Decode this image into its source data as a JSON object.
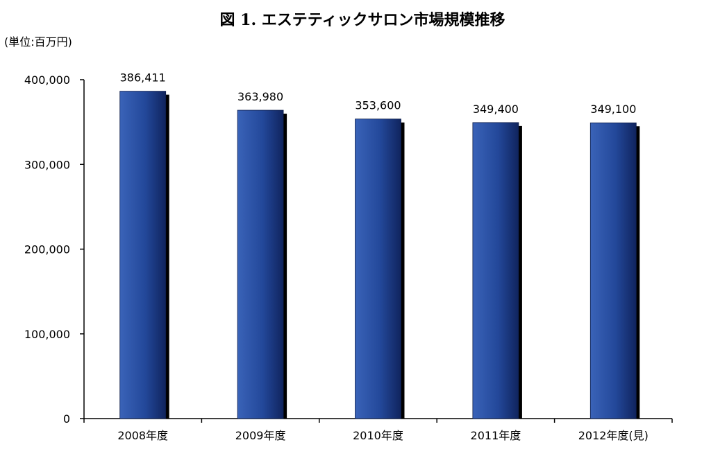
{
  "chart_data": {
    "type": "bar",
    "title": "図 1.  エステティックサロン市場規模推移",
    "unit_label": "(単位:百万円)",
    "categories": [
      "2008年度",
      "2009年度",
      "2010年度",
      "2011年度",
      "2012年度(見)"
    ],
    "values": [
      386411,
      363980,
      353600,
      349400,
      349100
    ],
    "value_labels": [
      "386,411",
      "363,980",
      "353,600",
      "349,400",
      "349,100"
    ],
    "yticks": [
      {
        "value": 0,
        "label": "0"
      },
      {
        "value": 100000,
        "label": "100,000"
      },
      {
        "value": 200000,
        "label": "200,000"
      },
      {
        "value": 300000,
        "label": "300,000"
      },
      {
        "value": 400000,
        "label": "400,000"
      }
    ],
    "ylim": [
      0,
      400000
    ],
    "grid": false,
    "bar_color": "#2a4fa0"
  }
}
